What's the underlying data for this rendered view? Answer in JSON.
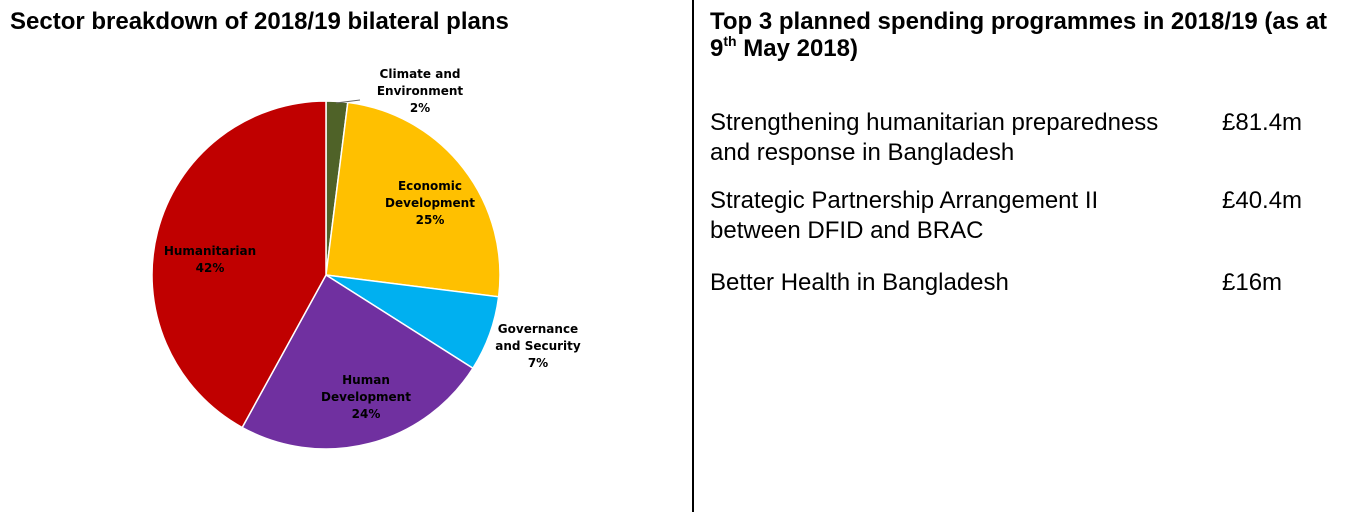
{
  "left_panel": {
    "title": "Sector breakdown of 2018/19 bilateral plans"
  },
  "right_panel": {
    "title_main": "Top 3 planned spending programmes in 2018/19 (as at 9",
    "title_sup": "th",
    "title_end": " May 2018)",
    "programmes": [
      {
        "name": "Strengthening humanitarian preparedness and response in Bangladesh",
        "amount": "£81.4m"
      },
      {
        "name": "Strategic Partnership Arrangement II between DFID and BRAC",
        "amount": "£40.4m"
      },
      {
        "name": "Better Health in Bangladesh",
        "amount": "£16m"
      }
    ]
  },
  "chart_data": {
    "type": "pie",
    "title": "Sector breakdown of 2018/19 bilateral plans",
    "slices": [
      {
        "label": [
          "Climate and",
          "Environment"
        ],
        "value": 2,
        "display": "2%",
        "color": "#4F6228"
      },
      {
        "label": [
          "Economic",
          "Development"
        ],
        "value": 25,
        "display": "25%",
        "color": "#FFC000"
      },
      {
        "label": [
          "Governance",
          "and Security"
        ],
        "value": 7,
        "display": "7%",
        "color": "#00B0F0"
      },
      {
        "label": [
          "Human",
          "Development"
        ],
        "value": 24,
        "display": "24%",
        "color": "#7030A0"
      },
      {
        "label": [
          "Humanitarian"
        ],
        "value": 42,
        "display": "42%",
        "color": "#C00000"
      }
    ]
  }
}
